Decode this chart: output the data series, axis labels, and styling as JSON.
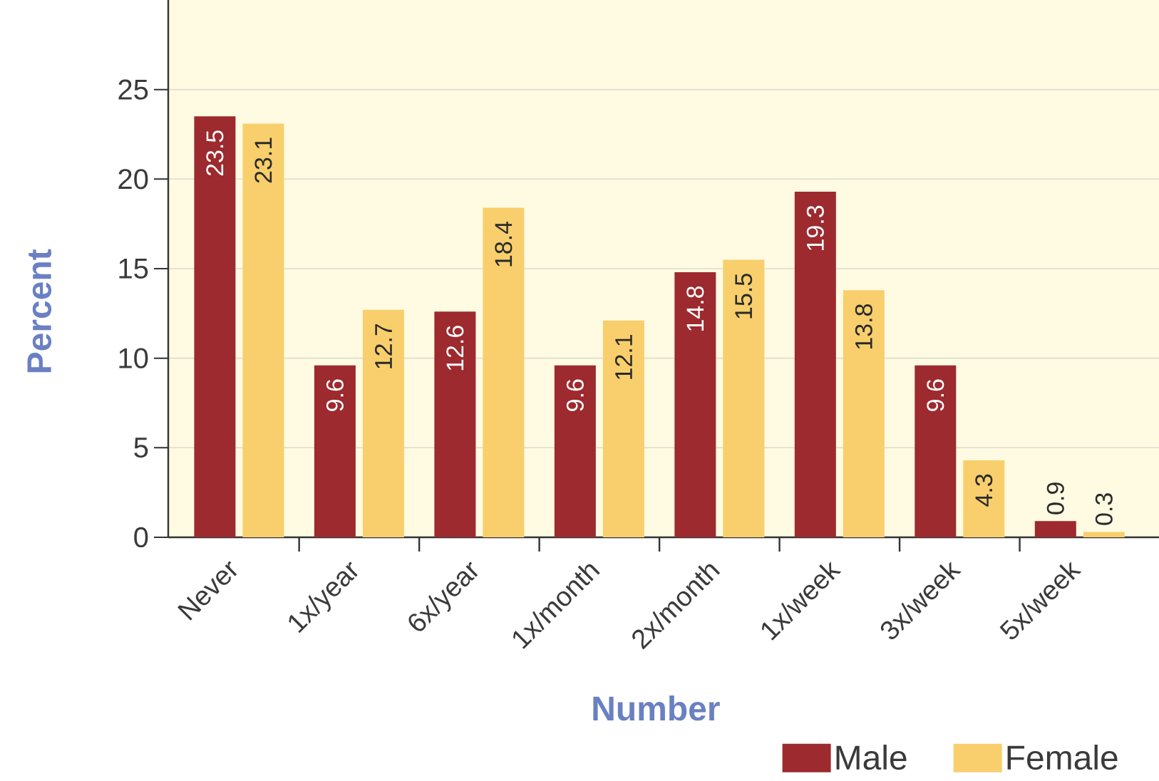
{
  "chart_data": {
    "type": "bar",
    "xlabel": "Number",
    "ylabel": "Percent",
    "categories": [
      "Never",
      "1x/year",
      "6x/year",
      "1x/month",
      "2x/month",
      "1x/week",
      "3x/week",
      "5x/week"
    ],
    "series": [
      {
        "name": "Male",
        "color": "#9c2a2e",
        "values": [
          23.5,
          9.6,
          12.6,
          9.6,
          14.8,
          19.3,
          9.6,
          0.9
        ]
      },
      {
        "name": "Female",
        "color": "#f8cf6c",
        "values": [
          23.1,
          12.7,
          18.4,
          12.1,
          15.5,
          13.8,
          4.3,
          0.3
        ]
      }
    ],
    "ylim": [
      0,
      30
    ],
    "yticks": [
      0,
      5,
      10,
      15,
      20,
      25
    ],
    "grid": "y",
    "legend": "bottom right",
    "data_labels": true
  }
}
